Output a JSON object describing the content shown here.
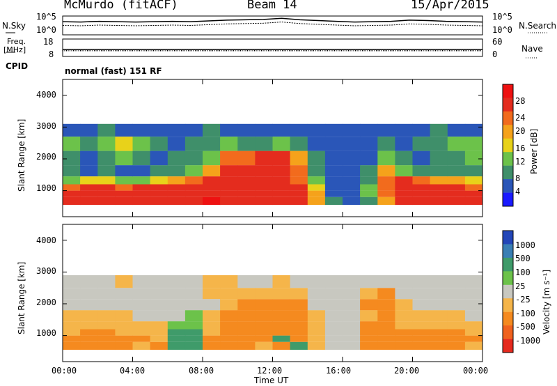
{
  "header": {
    "station": "McMurdo (fitACF)",
    "beam": "Beam 14",
    "date": "15/Apr/2015"
  },
  "noise_panel": {
    "left_label": "N.Sky",
    "right_label": "N.Search",
    "y_ticks_left": [
      "10^5",
      "10^0"
    ],
    "y_ticks_right": [
      "10^5",
      "10^0"
    ]
  },
  "freq_panel": {
    "left_label_1": "Freq.",
    "left_label_2": "[MHz]",
    "right_label": "Nave",
    "y_ticks_left": [
      "18",
      "8"
    ],
    "y_ticks_right": [
      "60",
      "0"
    ]
  },
  "cpid": {
    "label": "CPID",
    "value": "normal (fast) 151 RF"
  },
  "x_axis": {
    "ticks": [
      "00:00",
      "04:00",
      "08:00",
      "12:00",
      "16:00",
      "20:00",
      "00:00"
    ],
    "label": "Time UT"
  },
  "power_panel": {
    "ylabel": "Slant Range [km]",
    "y_ticks": [
      "1000",
      "2000",
      "3000",
      "4000"
    ],
    "colorbar_label": "Power [dB]",
    "colorbar_ticks": [
      "4",
      "8",
      "12",
      "16",
      "20",
      "24",
      "28"
    ],
    "colorbar_colors": [
      "#1a1aff",
      "#2a56b8",
      "#3f8f6a",
      "#6cc24a",
      "#e8d21a",
      "#f5a21b",
      "#f26b1d",
      "#e42c1e",
      "#ee1111"
    ]
  },
  "velocity_panel": {
    "ylabel": "Slant Range [km]",
    "y_ticks": [
      "1000",
      "2000",
      "3000",
      "4000"
    ],
    "colorbar_label": "Velocity [m s⁻¹]",
    "colorbar_ticks": [
      "1000",
      "500",
      "100",
      "25",
      "-25",
      "-100",
      "-500",
      "-1000"
    ],
    "colorbar_colors": [
      "#2346b8",
      "#3a7fb5",
      "#3f9b6a",
      "#6cc24a",
      "#c8c8c0",
      "#f5b54a",
      "#f58a1f",
      "#f0621e",
      "#e62a1e"
    ]
  },
  "chart_data": [
    {
      "type": "heatmap",
      "title": "Power",
      "xlabel": "Time UT",
      "ylabel": "Slant Range [km]",
      "x_range": [
        "00:00",
        "24:00"
      ],
      "ylim": [
        180,
        4500
      ],
      "colorbar": {
        "label": "Power [dB]",
        "range": [
          0,
          32
        ],
        "ticks": [
          4,
          8,
          12,
          16,
          20,
          24,
          28
        ]
      },
      "rows": [
        {
          "range_km": 700,
          "power_db": [
            28,
            28,
            26,
            28,
            27,
            28,
            28,
            27,
            29,
            28,
            27,
            26,
            28,
            27,
            20,
            8,
            6,
            10,
            20,
            27,
            28,
            28,
            27,
            26
          ]
        },
        {
          "range_km": 900,
          "power_db": [
            27,
            28,
            27,
            27,
            28,
            28,
            28,
            28,
            28,
            27,
            28,
            27,
            28,
            26,
            18,
            6,
            4,
            12,
            22,
            28,
            28,
            27,
            28,
            26
          ]
        },
        {
          "range_km": 1100,
          "power_db": [
            24,
            26,
            25,
            24,
            25,
            26,
            27,
            27,
            28,
            28,
            27,
            28,
            27,
            25,
            16,
            6,
            4,
            14,
            24,
            27,
            26,
            27,
            25,
            24
          ]
        },
        {
          "range_km": 1300,
          "power_db": [
            14,
            16,
            15,
            14,
            14,
            16,
            18,
            22,
            26,
            27,
            28,
            27,
            26,
            24,
            12,
            6,
            4,
            10,
            22,
            25,
            22,
            20,
            18,
            16
          ]
        },
        {
          "range_km": 1600,
          "power_db": [
            8,
            6,
            8,
            6,
            6,
            8,
            10,
            12,
            20,
            26,
            27,
            28,
            27,
            22,
            10,
            4,
            4,
            8,
            18,
            14,
            10,
            8,
            8,
            8
          ]
        },
        {
          "range_km": 2000,
          "power_db": [
            10,
            6,
            8,
            12,
            8,
            6,
            8,
            10,
            14,
            22,
            24,
            26,
            28,
            20,
            8,
            4,
            4,
            6,
            12,
            10,
            6,
            8,
            10,
            12
          ]
        },
        {
          "range_km": 2500,
          "power_db": [
            14,
            10,
            12,
            16,
            14,
            8,
            6,
            8,
            10,
            12,
            10,
            8,
            12,
            10,
            6,
            4,
            4,
            6,
            8,
            6,
            8,
            10,
            12,
            14
          ]
        },
        {
          "range_km": 2900,
          "power_db": [
            6,
            6,
            8,
            6,
            4,
            4,
            4,
            6,
            8,
            6,
            4,
            4,
            6,
            4,
            4,
            4,
            4,
            4,
            4,
            4,
            6,
            8,
            6,
            6
          ]
        }
      ]
    },
    {
      "type": "heatmap",
      "title": "Velocity",
      "xlabel": "Time UT",
      "ylabel": "Slant Range [km]",
      "x_range": [
        "00:00",
        "24:00"
      ],
      "ylim": [
        180,
        4500
      ],
      "colorbar": {
        "label": "Velocity [m s⁻¹]",
        "ticks": [
          1000,
          500,
          100,
          25,
          -25,
          -100,
          -500,
          -1000
        ]
      },
      "rows": [
        {
          "range_km": 700,
          "velocity_ms": [
            -120,
            -150,
            -200,
            -110,
            -100,
            -150,
            100,
            120,
            -200,
            -300,
            -150,
            -100,
            -200,
            100,
            -100,
            20,
            0,
            -200,
            -300,
            -150,
            -200,
            -250,
            -120,
            -100
          ]
        },
        {
          "range_km": 900,
          "velocity_ms": [
            -150,
            -200,
            -250,
            -150,
            -120,
            -100,
            150,
            200,
            -150,
            -250,
            -300,
            -200,
            300,
            -150,
            -100,
            10,
            0,
            -250,
            -350,
            -200,
            -220,
            -300,
            -150,
            -120
          ]
        },
        {
          "range_km": 1100,
          "velocity_ms": [
            -100,
            -120,
            -150,
            -100,
            -90,
            -80,
            100,
            150,
            -100,
            -200,
            -250,
            -300,
            -400,
            -200,
            -80,
            0,
            0,
            -200,
            -300,
            -150,
            -150,
            -200,
            -120,
            -80
          ]
        },
        {
          "range_km": 1300,
          "velocity_ms": [
            -80,
            -90,
            -100,
            -80,
            -60,
            -50,
            60,
            80,
            -80,
            -150,
            -300,
            -350,
            -400,
            -300,
            -60,
            0,
            0,
            -150,
            -250,
            -100,
            -80,
            -100,
            -80,
            -60
          ]
        },
        {
          "range_km": 1600,
          "velocity_ms": [
            -40,
            -30,
            -40,
            -30,
            0,
            0,
            20,
            30,
            -60,
            -200,
            -300,
            -400,
            -350,
            -250,
            -40,
            0,
            0,
            -100,
            -200,
            -60,
            -40,
            -30,
            -30,
            -20
          ]
        },
        {
          "range_km": 2000,
          "velocity_ms": [
            10,
            0,
            -10,
            20,
            0,
            0,
            0,
            0,
            -20,
            -100,
            -200,
            -300,
            -250,
            -150,
            -20,
            0,
            0,
            -200,
            -300,
            -40,
            0,
            10,
            20,
            0
          ]
        },
        {
          "range_km": 2300,
          "velocity_ms": [
            5,
            0,
            0,
            10,
            0,
            -20,
            0,
            0,
            -30,
            -80,
            -100,
            -60,
            -80,
            -40,
            0,
            0,
            0,
            -100,
            -150,
            -20,
            0,
            0,
            10,
            5
          ]
        },
        {
          "range_km": 2700,
          "velocity_ms": [
            0,
            0,
            -10,
            -30,
            0,
            0,
            0,
            0,
            -60,
            -40,
            -20,
            0,
            -40,
            -20,
            0,
            0,
            0,
            0,
            0,
            0,
            0,
            0,
            0,
            0
          ]
        }
      ]
    },
    {
      "type": "line",
      "title": "N.Sky / N.Search",
      "x_range": [
        "00:00",
        "24:00"
      ],
      "series": [
        {
          "name": "N.Sky",
          "values": [
            3.5,
            3.4,
            3.6,
            3.5,
            3.4,
            3.5,
            3.6,
            3.5,
            3.7,
            3.9,
            4.0,
            4.1,
            4.4,
            4.0,
            3.8,
            3.6,
            3.4,
            3.5,
            3.6,
            3.9,
            3.8,
            3.6,
            3.5,
            3.4
          ]
        },
        {
          "name": "N.Search",
          "values": [
            2.5,
            2.4,
            2.6,
            2.5,
            2.4,
            2.5,
            2.6,
            2.5,
            2.7,
            2.9,
            3.0,
            3.1,
            3.4,
            3.0,
            2.8,
            2.6,
            2.4,
            2.5,
            2.6,
            2.9,
            2.8,
            2.6,
            2.5,
            2.4
          ]
        }
      ]
    },
    {
      "type": "line",
      "title": "Freq. / Nave",
      "x_range": [
        "00:00",
        "24:00"
      ],
      "series": [
        {
          "name": "Freq.",
          "values": [
            12,
            12,
            12,
            12,
            12,
            12,
            12,
            12,
            12,
            12,
            12,
            12,
            12,
            12,
            12,
            12,
            12,
            12,
            12,
            12,
            12,
            12,
            12,
            12
          ]
        },
        {
          "name": "Nave",
          "values": [
            20,
            20,
            20,
            20,
            20,
            20,
            20,
            20,
            20,
            20,
            20,
            20,
            20,
            20,
            20,
            20,
            20,
            20,
            20,
            20,
            20,
            20,
            20,
            20
          ]
        }
      ]
    }
  ]
}
